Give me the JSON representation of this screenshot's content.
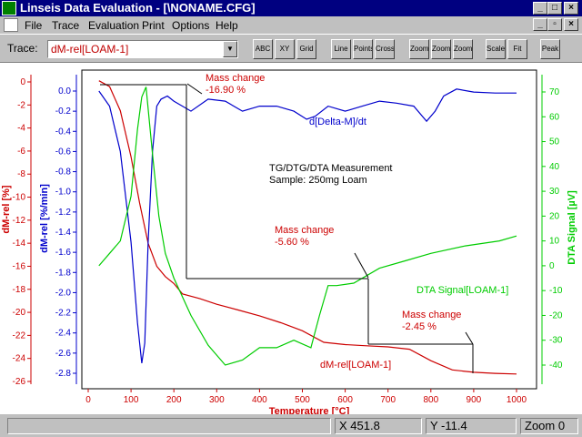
{
  "window": {
    "title": "Linseis Data Evaluation - [\\NONAME.CFG]"
  },
  "menu": [
    "File",
    "Trace",
    "Evaluation",
    "Print",
    "Options",
    "Help"
  ],
  "toolbar": {
    "trace_label": "Trace:",
    "trace_value": "dM-rel[LOAM-1]",
    "buttons": [
      "ABC",
      "XY",
      "Grid",
      "Line",
      "Points",
      "Cross",
      "Zoom",
      "Zoom+",
      "Zoom-",
      "Scale",
      "Fit",
      "Peak"
    ]
  },
  "chart_data": {
    "type": "line",
    "xlabel": "Temperature  [°C]",
    "x_ticks": [
      0,
      100,
      200,
      300,
      400,
      500,
      600,
      700,
      800,
      900,
      1000
    ],
    "xlim": [
      -15,
      1040
    ],
    "y_axes": [
      {
        "label": "dM-rel  [%]",
        "color": "#cc0000",
        "ylim": [
          -26.5,
          1.2
        ],
        "ticks": [
          0,
          -2,
          -4,
          -6,
          -8,
          -10,
          -12,
          -14,
          -16,
          -18,
          -20,
          -22,
          -24,
          -26
        ]
      },
      {
        "label": "dM-rel [%/min]",
        "color": "#0000cc",
        "ylim": [
          -2.87,
          0.14
        ],
        "ticks": [
          0.0,
          -0.2,
          -0.4,
          -0.6,
          -0.8,
          -1.0,
          -1.2,
          -1.4,
          -1.6,
          -1.8,
          -2.0,
          -2.2,
          -2.4,
          -2.6,
          -2.8
        ]
      },
      {
        "label": "DTA Signal  [µV]",
        "color": "#00cc00",
        "ylim": [
          -45,
          74
        ],
        "ticks": [
          70,
          60,
          50,
          40,
          30,
          20,
          10,
          0,
          -10,
          -20,
          -30,
          -40
        ]
      }
    ],
    "series": [
      {
        "name": "dM-rel[LOAM-1]",
        "color": "#cc0000",
        "axis": 0,
        "x": [
          25,
          50,
          75,
          100,
          120,
          140,
          160,
          180,
          200,
          220,
          260,
          300,
          350,
          400,
          450,
          500,
          550,
          600,
          650,
          700,
          750,
          800,
          850,
          900,
          950,
          1000
        ],
        "y": [
          0.1,
          -0.4,
          -2.5,
          -6.5,
          -10.5,
          -14,
          -16,
          -16.9,
          -17.5,
          -18.4,
          -18.8,
          -19.3,
          -19.8,
          -20.3,
          -20.9,
          -21.6,
          -22.6,
          -22.8,
          -22.9,
          -23.0,
          -23.2,
          -24.2,
          -25.0,
          -25.2,
          -25.3,
          -25.35
        ]
      },
      {
        "name": "d[Delta-M]/dt",
        "color": "#0000cc",
        "axis": 1,
        "x": [
          25,
          50,
          75,
          100,
          115,
          125,
          132,
          140,
          150,
          160,
          170,
          185,
          200,
          240,
          280,
          320,
          360,
          400,
          440,
          480,
          510,
          530,
          560,
          600,
          640,
          680,
          720,
          760,
          790,
          810,
          830,
          860,
          900,
          950,
          1000
        ],
        "y": [
          0.0,
          -0.15,
          -0.6,
          -1.5,
          -2.3,
          -2.7,
          -2.5,
          -1.5,
          -0.6,
          -0.15,
          -0.08,
          -0.05,
          -0.1,
          -0.2,
          -0.08,
          -0.1,
          -0.2,
          -0.15,
          -0.15,
          -0.2,
          -0.28,
          -0.25,
          -0.15,
          -0.2,
          -0.15,
          -0.1,
          -0.12,
          -0.15,
          -0.3,
          -0.2,
          -0.05,
          0.02,
          -0.01,
          -0.02,
          -0.02
        ]
      },
      {
        "name": "DTA Signal[LOAM-1]",
        "color": "#00cc00",
        "axis": 2,
        "x": [
          25,
          50,
          75,
          100,
          115,
          125,
          135,
          150,
          165,
          180,
          200,
          240,
          280,
          320,
          360,
          400,
          440,
          480,
          520,
          540,
          560,
          580,
          620,
          680,
          740,
          800,
          880,
          960,
          1000
        ],
        "y": [
          0,
          5,
          10,
          28,
          55,
          68,
          72,
          45,
          20,
          5,
          -5,
          -20,
          -32,
          -40,
          -38,
          -33,
          -33,
          -30,
          -33,
          -20,
          -8,
          -8,
          -7,
          -1,
          2,
          5,
          8,
          10,
          12
        ]
      }
    ],
    "annotations": {
      "chart_title": "TG/DTG/DTA Measurement",
      "sample": "Sample: 250mg Loam",
      "mass_changes": [
        {
          "label": "Mass change",
          "value": "-16.90 %"
        },
        {
          "label": "Mass change",
          "value": "-5.60 %"
        },
        {
          "label": "Mass change",
          "value": "-2.45 %"
        }
      ],
      "labels": {
        "dtg": "d[Delta-M]/dt",
        "dta": "DTA Signal[LOAM-1]",
        "tg": "dM-rel[LOAM-1]"
      }
    }
  },
  "status": {
    "x": "X 451.8",
    "y": "Y -11.4",
    "zoom": "Zoom 0"
  }
}
